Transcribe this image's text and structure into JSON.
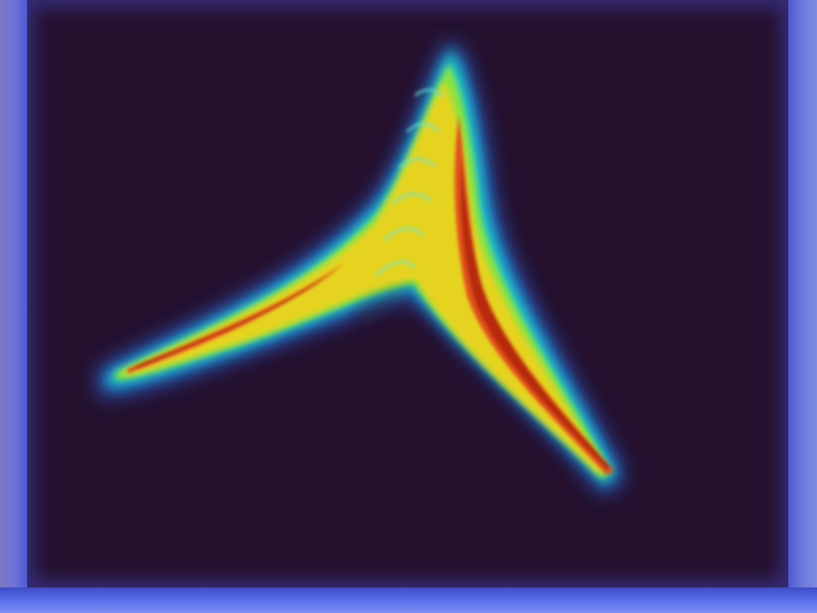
{
  "image": {
    "description_type": "heatmap-render",
    "colors": {
      "background": "#25102e",
      "frame": "#6f7ad8",
      "low": "#1e7cff",
      "mid_low": "#19d3c5",
      "mid": "#8fe53a",
      "mid_high": "#f0d21b",
      "high": "#e2481a",
      "peak": "#b01c10"
    }
  }
}
